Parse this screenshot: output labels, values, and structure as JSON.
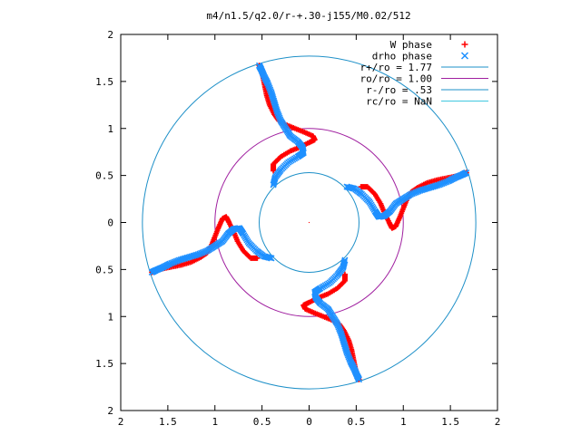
{
  "chart_data": {
    "type": "scatter",
    "title": "m4/n1.5/q2.0/r-+.30-j155/M0.02/512",
    "xlabel": "",
    "ylabel": "",
    "xlim": [
      -2,
      2
    ],
    "ylim": [
      -2,
      2
    ],
    "x_ticks": [
      "2",
      "1.5",
      "1",
      "0.5",
      "0",
      "0.5",
      "1",
      "1.5",
      "2"
    ],
    "y_ticks": [
      "2",
      "1.5",
      "1",
      "0.5",
      "0",
      "0.5",
      "1",
      "1.5",
      "2"
    ],
    "grid": false,
    "legend_position": "top-right",
    "series": [
      {
        "name": "W phase",
        "marker": "plus",
        "color": "#ff0000",
        "arms": 4,
        "rotation_deg": 90,
        "arm_points": [
          [
            0.55,
            0.38
          ],
          [
            0.62,
            0.38
          ],
          [
            0.7,
            0.3
          ],
          [
            0.76,
            0.2
          ],
          [
            0.8,
            0.1
          ],
          [
            0.85,
            0.0
          ],
          [
            0.88,
            -0.06
          ],
          [
            0.92,
            -0.04
          ],
          [
            0.96,
            0.05
          ],
          [
            1.0,
            0.15
          ],
          [
            1.04,
            0.25
          ],
          [
            1.08,
            0.32
          ],
          [
            1.15,
            0.37
          ],
          [
            1.25,
            0.42
          ],
          [
            1.35,
            0.45
          ],
          [
            1.45,
            0.47
          ],
          [
            1.55,
            0.49
          ],
          [
            1.63,
            0.51
          ],
          [
            1.67,
            0.53
          ]
        ]
      },
      {
        "name": "drho phase",
        "marker": "cross",
        "color": "#1e90ff",
        "arms": 4,
        "rotation_deg": 90,
        "arm_points": [
          [
            0.4,
            0.38
          ],
          [
            0.48,
            0.36
          ],
          [
            0.56,
            0.3
          ],
          [
            0.64,
            0.22
          ],
          [
            0.7,
            0.12
          ],
          [
            0.74,
            0.06
          ],
          [
            0.8,
            0.07
          ],
          [
            0.86,
            0.12
          ],
          [
            0.92,
            0.2
          ],
          [
            1.0,
            0.25
          ],
          [
            1.08,
            0.3
          ],
          [
            1.18,
            0.34
          ],
          [
            1.28,
            0.37
          ],
          [
            1.38,
            0.4
          ],
          [
            1.48,
            0.44
          ],
          [
            1.56,
            0.48
          ],
          [
            1.63,
            0.51
          ],
          [
            1.67,
            0.53
          ]
        ]
      }
    ],
    "circles": [
      {
        "name": "r+/ro = 1.77",
        "r": 1.77,
        "color": "#1e90c8"
      },
      {
        "name": "ro/ro = 1.00",
        "r": 1.0,
        "color": "#a020a0"
      },
      {
        "name": "r-/ro = .53",
        "r": 0.53,
        "color": "#1e90c8"
      },
      {
        "name": "rc/ro = NaN",
        "r": null,
        "color": "#40c8e0"
      }
    ]
  }
}
